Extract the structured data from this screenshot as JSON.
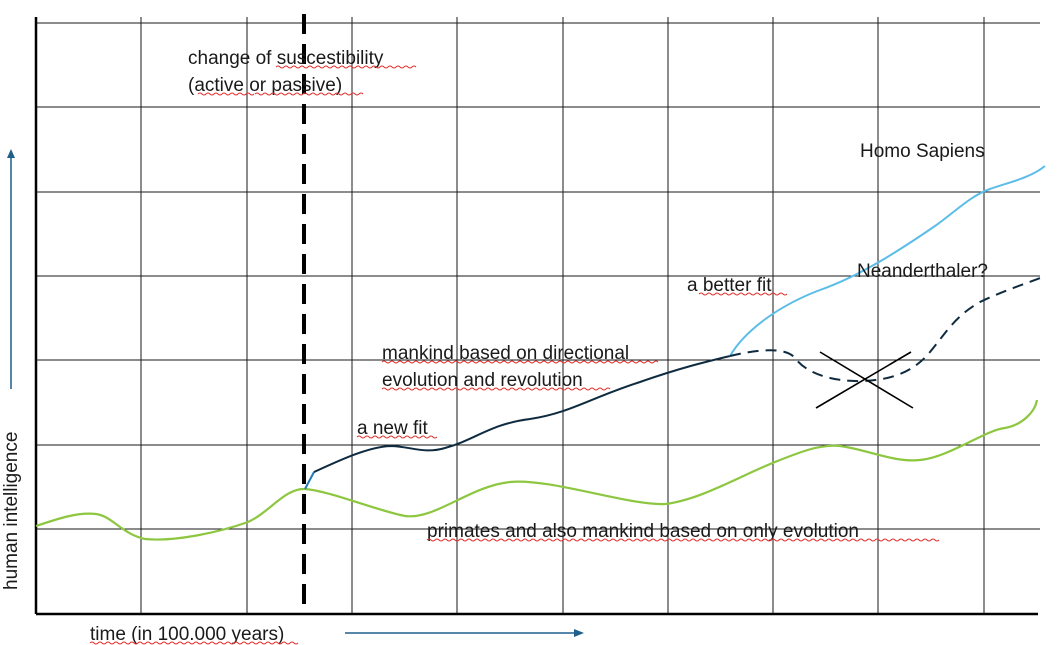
{
  "labels": {
    "change_line1": "change of suscestibility",
    "change_line2": "(active or passive)",
    "homo_sapiens": "Homo Sapiens",
    "neanderthaler": "Neanderthaler?",
    "better_fit": "a better fit",
    "directional_line1": "mankind based on directional",
    "directional_line2": "evolution and revolution",
    "new_fit": "a new fit",
    "primates": "primates and also mankind based on only evolution",
    "x_axis": "time (in 100.000 years)",
    "y_axis": "human intelligence"
  },
  "colors": {
    "grid": "#1a1a1a",
    "evolution_curve": "#8dc63f",
    "directional_curve": "#0f2b40",
    "homo_sapiens_curve": "#5bbde8",
    "neanderthal_curve": "#0f2b40",
    "arrow": "#1f5f8b",
    "divider": "#000000"
  }
}
